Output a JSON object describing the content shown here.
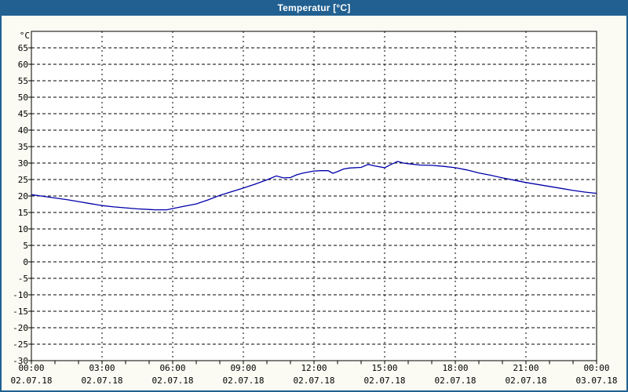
{
  "window": {
    "title": "Temperatur [°C]",
    "title_bar_color": "#216091",
    "border_color": "#216091",
    "background_color": "#fbfbf3"
  },
  "chart_data": {
    "type": "line",
    "title": "Temperatur [°C]",
    "y_unit_label": "°C",
    "xlabel": "",
    "ylabel": "",
    "ylim": [
      -30,
      70
    ],
    "y_tick_step": 5,
    "y_tick_values": [
      65,
      60,
      55,
      50,
      45,
      40,
      35,
      30,
      25,
      20,
      15,
      10,
      5,
      0,
      -5,
      -10,
      -15,
      -20,
      -25,
      -30
    ],
    "x_hours_range": [
      0,
      24
    ],
    "x_minor_tick_every_hours": 1,
    "x_major_ticks": [
      {
        "hour": 0,
        "time": "00:00",
        "date": "02.07.18"
      },
      {
        "hour": 3,
        "time": "03:00",
        "date": "02.07.18"
      },
      {
        "hour": 6,
        "time": "06:00",
        "date": "02.07.18"
      },
      {
        "hour": 9,
        "time": "09:00",
        "date": "02.07.18"
      },
      {
        "hour": 12,
        "time": "12:00",
        "date": "02.07.18"
      },
      {
        "hour": 15,
        "time": "15:00",
        "date": "02.07.18"
      },
      {
        "hour": 18,
        "time": "18:00",
        "date": "02.07.18"
      },
      {
        "hour": 21,
        "time": "21:00",
        "date": "02.07.18"
      },
      {
        "hour": 24,
        "time": "00:00",
        "date": "03.07.18"
      }
    ],
    "grid": "dashed",
    "legend": "none",
    "plot_background": "#ffffff",
    "axis_color": "#000000",
    "series": [
      {
        "name": "Temperatur",
        "color": "#0000aa",
        "points": [
          [
            0,
            20.4
          ],
          [
            0.5,
            19.9
          ],
          [
            1,
            19.4
          ],
          [
            1.5,
            18.9
          ],
          [
            2,
            18.3
          ],
          [
            2.5,
            17.7
          ],
          [
            3,
            17.1
          ],
          [
            3.5,
            16.7
          ],
          [
            4,
            16.4
          ],
          [
            4.5,
            16.1
          ],
          [
            5,
            15.9
          ],
          [
            5.25,
            15.8
          ],
          [
            5.75,
            15.8
          ],
          [
            6,
            16.2
          ],
          [
            6.5,
            16.9
          ],
          [
            7,
            17.6
          ],
          [
            7.5,
            18.8
          ],
          [
            8,
            20.2
          ],
          [
            8.5,
            21.3
          ],
          [
            9,
            22.4
          ],
          [
            9.5,
            23.6
          ],
          [
            10,
            24.9
          ],
          [
            10.4,
            26.1
          ],
          [
            10.7,
            25.5
          ],
          [
            11,
            25.6
          ],
          [
            11.25,
            26.4
          ],
          [
            11.5,
            26.9
          ],
          [
            12,
            27.6
          ],
          [
            12.3,
            27.7
          ],
          [
            12.6,
            27.7
          ],
          [
            12.8,
            26.9
          ],
          [
            13,
            27.4
          ],
          [
            13.25,
            28.2
          ],
          [
            13.5,
            28.5
          ],
          [
            14,
            28.7
          ],
          [
            14.3,
            29.6
          ],
          [
            14.6,
            29.1
          ],
          [
            15,
            28.6
          ],
          [
            15.3,
            29.7
          ],
          [
            15.55,
            30.5
          ],
          [
            15.8,
            30.0
          ],
          [
            16,
            29.8
          ],
          [
            16.5,
            29.4
          ],
          [
            17,
            29.3
          ],
          [
            17.5,
            29.0
          ],
          [
            18,
            28.6
          ],
          [
            18.5,
            27.9
          ],
          [
            19,
            27.0
          ],
          [
            19.5,
            26.3
          ],
          [
            20,
            25.5
          ],
          [
            20.5,
            24.8
          ],
          [
            21,
            24.1
          ],
          [
            21.5,
            23.5
          ],
          [
            22,
            22.9
          ],
          [
            22.5,
            22.3
          ],
          [
            23,
            21.7
          ],
          [
            23.5,
            21.2
          ],
          [
            24,
            20.8
          ]
        ]
      }
    ]
  }
}
